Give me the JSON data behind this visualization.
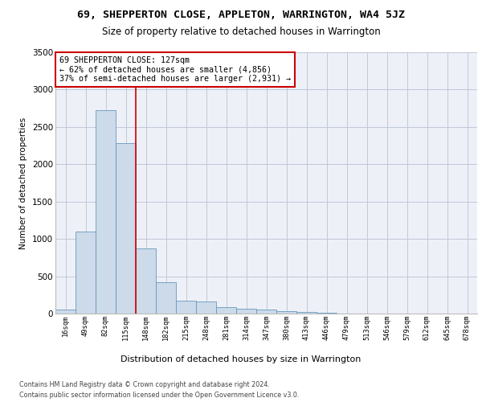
{
  "title": "69, SHEPPERTON CLOSE, APPLETON, WARRINGTON, WA4 5JZ",
  "subtitle": "Size of property relative to detached houses in Warrington",
  "xlabel": "Distribution of detached houses by size in Warrington",
  "ylabel": "Number of detached properties",
  "bin_labels": [
    "16sqm",
    "49sqm",
    "82sqm",
    "115sqm",
    "148sqm",
    "182sqm",
    "215sqm",
    "248sqm",
    "281sqm",
    "314sqm",
    "347sqm",
    "380sqm",
    "413sqm",
    "446sqm",
    "479sqm",
    "513sqm",
    "546sqm",
    "579sqm",
    "612sqm",
    "645sqm",
    "678sqm"
  ],
  "bar_values": [
    50,
    1100,
    2730,
    2280,
    870,
    415,
    170,
    165,
    90,
    60,
    50,
    30,
    20,
    10,
    5,
    3,
    2,
    2,
    1,
    1,
    1
  ],
  "bar_color": "#ccdaea",
  "bar_edgecolor": "#6699bb",
  "property_line_x": 3.5,
  "annotation_text": "69 SHEPPERTON CLOSE: 127sqm\n← 62% of detached houses are smaller (4,856)\n37% of semi-detached houses are larger (2,931) →",
  "annotation_box_facecolor": "#ffffff",
  "annotation_box_edgecolor": "#cc0000",
  "red_line_color": "#cc0000",
  "ylim": [
    0,
    3500
  ],
  "yticks": [
    0,
    500,
    1000,
    1500,
    2000,
    2500,
    3000,
    3500
  ],
  "grid_color": "#c0c8d8",
  "bg_color": "#eef0f8",
  "title_fontsize": 9.5,
  "subtitle_fontsize": 8.5,
  "footer_line1": "Contains HM Land Registry data © Crown copyright and database right 2024.",
  "footer_line2": "Contains public sector information licensed under the Open Government Licence v3.0."
}
